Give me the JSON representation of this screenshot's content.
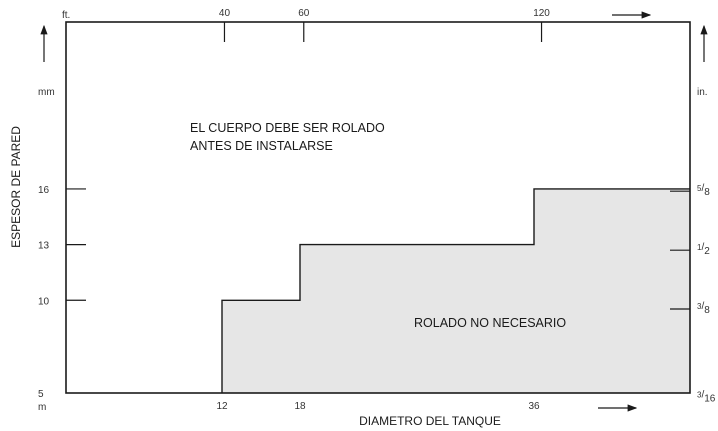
{
  "chart_data": {
    "type": "area",
    "title": "",
    "xlabel": "DIAMETRO DEL TANQUE",
    "ylabel": "ESPESOR DE PARED",
    "x_unit_bottom": "m",
    "x_unit_top": "ft.",
    "y_unit_left": "mm",
    "y_unit_right": "in.",
    "xlim": [
      0,
      48
    ],
    "ylim": [
      5,
      25
    ],
    "x_ticks_bottom": [
      {
        "value": 12,
        "label": "12"
      },
      {
        "value": 18,
        "label": "18"
      },
      {
        "value": 36,
        "label": "36"
      }
    ],
    "x_ticks_top": [
      {
        "value": 12.19,
        "label": "40"
      },
      {
        "value": 18.29,
        "label": "60"
      },
      {
        "value": 36.58,
        "label": "120"
      }
    ],
    "y_ticks_left": [
      {
        "value": 5,
        "label": "5"
      },
      {
        "value": 10,
        "label": "10"
      },
      {
        "value": 13,
        "label": "13"
      },
      {
        "value": 16,
        "label": "16"
      }
    ],
    "y_ticks_right": [
      {
        "value": 4.76,
        "num": "3",
        "den": "16"
      },
      {
        "value": 9.53,
        "num": "3",
        "den": "8"
      },
      {
        "value": 12.7,
        "num": "1",
        "den": "2"
      },
      {
        "value": 15.88,
        "num": "5",
        "den": "8"
      }
    ],
    "boundary": {
      "x": [
        12,
        12,
        18,
        18,
        36,
        36,
        48
      ],
      "y": [
        5,
        10,
        10,
        13,
        13,
        16,
        16
      ]
    },
    "region_labels": {
      "above": [
        "EL CUERPO DEBE SER ROLADO",
        "ANTES DE INSTALARSE"
      ],
      "below": "ROLADO NO NECESARIO"
    },
    "colors": {
      "shaded": "#e6e6e6",
      "line": "#1a1a1a"
    }
  }
}
